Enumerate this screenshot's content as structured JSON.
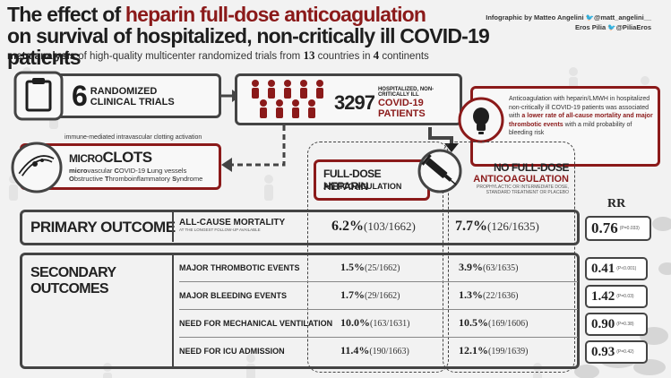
{
  "header": {
    "title_line1_prefix": "The effect of ",
    "title_line1_highlight": "heparin full-dose anticoagulation",
    "title_line2": "on survival of hospitalized, non-critically ill COVID-19 patients",
    "subtitle_bold": "meta-analysis",
    "subtitle_mid": " of high-quality multicenter randomized trials from ",
    "subtitle_countries": "13",
    "subtitle_mid2": " countries in ",
    "subtitle_continents": "4",
    "subtitle_end": " continents"
  },
  "credits": {
    "line1_prefix": "Infographic by Matteo Angelini",
    "line1_handle": "@matt_angelini__",
    "line2_prefix": "Eros Pilia",
    "line2_handle": "@PiliaEros",
    "icon": "twitter-bird-icon"
  },
  "trials": {
    "count": "6",
    "label_line1": "RANDOMIZED",
    "label_line2": "CLINICAL TRIALS",
    "icon": "clipboard-icon"
  },
  "patients": {
    "count": "3297",
    "label_line1": "HOSPITALIZED, NON-CRITICALLY ILL",
    "label_line2": "COVID-19 PATIENTS",
    "icon": "people-icon"
  },
  "conclusion": {
    "icon": "lightbulb-icon",
    "text_before": "Anticoagulation with heparin/LMWH in hospitalized non-critically ill COVID-19 patients was associated with ",
    "text_highlight": "a lower rate of all-cause mortality and major thrombotic events",
    "text_after": " with a mild probability of bleeding risk"
  },
  "microclots": {
    "caption": "immune-mediated intravascular clotting activation",
    "title_small": "MICRO",
    "title_big": "CLOTS",
    "line1_initial": "micro",
    "line1_rest": "vascular ",
    "line1_c": "C",
    "line1_c_rest": "OVID-19 ",
    "line1_l": "L",
    "line1_l_rest": "ung vessels",
    "line2_o": "O",
    "line2_o_rest": "bstructive ",
    "line2_t": "T",
    "line2_t_rest": "hromboinflammatory ",
    "line2_s": "S",
    "line2_s_rest": "yndrome",
    "icon": "blood-vessel-icon"
  },
  "arms": {
    "full_dose_line1": "FULL-DOSE HEPARIN",
    "full_dose_line2": "ANTICOAGULATION",
    "no_full_dose_line1": "NO FULL-DOSE",
    "no_full_dose_line2": "ANTICOAGULATION",
    "no_full_dose_sub1": "PROPHYLACTIC OR INTERMEDIATE DOSE,",
    "no_full_dose_sub2": "STANDARD TREATMENT OR PLACEBO",
    "syringe_icon": "syringe-icon"
  },
  "rr_header": "RR",
  "primary": {
    "label": "PRIMARY OUTCOME",
    "outcome": "ALL-CAUSE MORTALITY",
    "outcome_sub": "AT THE LONGEST FOLLOW-UP AVAILABLE",
    "full_pct": "6.2%",
    "full_n": "(103/1662)",
    "no_pct": "7.7%",
    "no_n": "(126/1635)",
    "rr": "0.76",
    "p": "(P=0.033)"
  },
  "secondary": {
    "label": "SECONDARY OUTCOMES",
    "rows": [
      {
        "outcome": "MAJOR THROMBOTIC EVENTS",
        "full_pct": "1.5%",
        "full_n": "(25/1662)",
        "no_pct": "3.9%",
        "no_n": "(63/1635)",
        "rr": "0.41",
        "p": "(P<0.001)"
      },
      {
        "outcome": "MAJOR BLEEDING EVENTS",
        "full_pct": "1.7%",
        "full_n": "(29/1662)",
        "no_pct": "1.3%",
        "no_n": "(22/1636)",
        "rr": "1.42",
        "p": "(P=0.03)"
      },
      {
        "outcome": "NEED FOR MECHANICAL VENTILATION",
        "full_pct": "10.0%",
        "full_n": "(163/1631)",
        "no_pct": "10.5%",
        "no_n": "(169/1606)",
        "rr": "0.90",
        "p": "(P=0.38)"
      },
      {
        "outcome": "NEED FOR ICU ADMISSION",
        "full_pct": "11.4%",
        "full_n": "(190/1663)",
        "no_pct": "12.1%",
        "no_n": "(199/1639)",
        "rr": "0.93",
        "p": "(P=0.42)"
      }
    ]
  },
  "colors": {
    "accent_red": "#8b1a1a",
    "dark": "#1e1e1e",
    "frame": "#444444"
  }
}
